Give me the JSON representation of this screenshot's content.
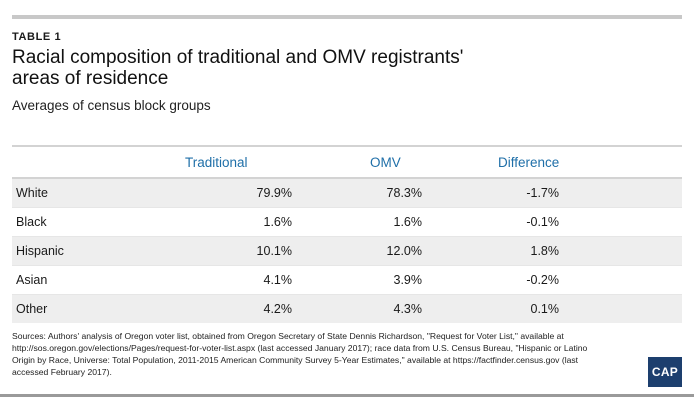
{
  "kicker": "TABLE 1",
  "title": "Racial composition of traditional and OMV registrants' areas of residence",
  "subtitle": "Averages of census block groups",
  "table": {
    "headers": [
      "",
      "Traditional",
      "OMV",
      "Difference"
    ],
    "rows": [
      [
        "White",
        "79.9%",
        "78.3%",
        "-1.7%"
      ],
      [
        "Black",
        "1.6%",
        "1.6%",
        "-0.1%"
      ],
      [
        "Hispanic",
        "10.1%",
        "12.0%",
        "1.8%"
      ],
      [
        "Asian",
        "4.1%",
        "3.9%",
        "-0.2%"
      ],
      [
        "Other",
        "4.2%",
        "4.3%",
        "0.1%"
      ]
    ]
  },
  "sources": "Sources: Authors' analysis of Oregon voter list, obtained from Oregon Secretary of State Dennis Richardson, \"Request for Voter List,\" available at http://sos.oregon.gov/elections/Pages/request-for-voter-list.aspx (last accessed January 2017); race data from U.S. Census Bureau, \"Hispanic or Latino Origin by Race, Universe: Total Population, 2011-2015 American Community Survey 5-Year Estimates,\" available at https://factfinder.census.gov (last accessed February 2017).",
  "logo": "CAP",
  "colors": {
    "header_text": "#1f6fa8",
    "logo_bg": "#1d3f6e",
    "row_shade": "#eeeeee"
  }
}
